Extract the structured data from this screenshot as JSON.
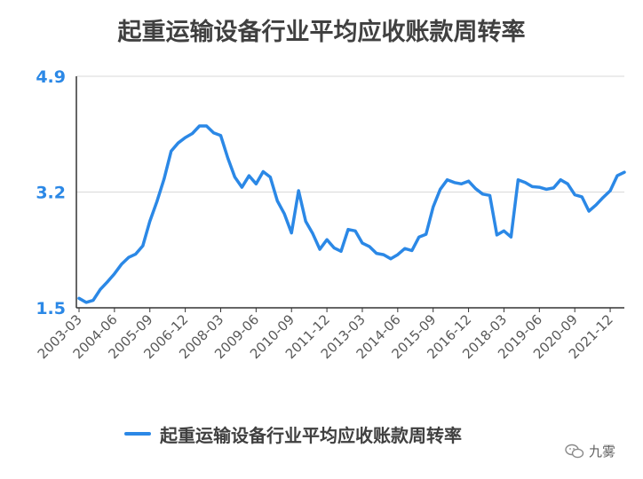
{
  "chart_data": {
    "type": "line",
    "title": "起重运输设备行业平均应收账款周转率",
    "xlabel": "",
    "ylabel": "",
    "ylim": [
      1.5,
      4.9
    ],
    "yticks": [
      1.5,
      3.2,
      4.9
    ],
    "xticks": [
      "2003-03",
      "2004-06",
      "2005-09",
      "2006-12",
      "2008-03",
      "2009-06",
      "2010-09",
      "2011-12",
      "2013-03",
      "2014-06",
      "2015-09",
      "2016-12",
      "2018-03",
      "2019-06",
      "2020-09",
      "2021-12"
    ],
    "grid": "horizontal",
    "legend_position": "bottom",
    "x": [
      "2003-03",
      "2003-06",
      "2003-09",
      "2003-12",
      "2004-03",
      "2004-06",
      "2004-09",
      "2004-12",
      "2005-03",
      "2005-06",
      "2005-09",
      "2005-12",
      "2006-03",
      "2006-06",
      "2006-09",
      "2006-12",
      "2007-03",
      "2007-06",
      "2007-09",
      "2007-12",
      "2008-03",
      "2008-06",
      "2008-09",
      "2008-12",
      "2009-03",
      "2009-06",
      "2009-09",
      "2009-12",
      "2010-03",
      "2010-06",
      "2010-09",
      "2010-12",
      "2011-03",
      "2011-06",
      "2011-09",
      "2011-12",
      "2012-03",
      "2012-06",
      "2012-09",
      "2012-12",
      "2013-03",
      "2013-06",
      "2013-09",
      "2013-12",
      "2014-03",
      "2014-06",
      "2014-09",
      "2014-12",
      "2015-03",
      "2015-06",
      "2015-09",
      "2015-12",
      "2016-03",
      "2016-06",
      "2016-09",
      "2016-12",
      "2017-03",
      "2017-06",
      "2017-09",
      "2017-12",
      "2018-03",
      "2018-06",
      "2018-09",
      "2018-12",
      "2019-03",
      "2019-06",
      "2019-09",
      "2019-12",
      "2020-03",
      "2020-06",
      "2020-09",
      "2020-12",
      "2021-03",
      "2021-06",
      "2021-09",
      "2021-12",
      "2022-03",
      "2022-06"
    ],
    "series": [
      {
        "name": "起重运输设备行业平均应收账款周转率",
        "color": "#2b88e6",
        "values": [
          1.64,
          1.58,
          1.61,
          1.77,
          1.88,
          2.0,
          2.14,
          2.24,
          2.29,
          2.41,
          2.77,
          3.06,
          3.39,
          3.8,
          3.92,
          4.0,
          4.06,
          4.17,
          4.17,
          4.07,
          4.03,
          3.7,
          3.42,
          3.27,
          3.44,
          3.32,
          3.5,
          3.42,
          3.07,
          2.88,
          2.6,
          3.22,
          2.77,
          2.59,
          2.36,
          2.5,
          2.38,
          2.33,
          2.65,
          2.63,
          2.45,
          2.4,
          2.3,
          2.28,
          2.22,
          2.28,
          2.37,
          2.34,
          2.54,
          2.58,
          2.98,
          3.24,
          3.38,
          3.34,
          3.32,
          3.36,
          3.25,
          3.17,
          3.15,
          2.57,
          2.63,
          2.54,
          3.38,
          3.34,
          3.28,
          3.27,
          3.24,
          3.26,
          3.38,
          3.32,
          3.16,
          3.13,
          2.92,
          3.01,
          3.12,
          3.22,
          3.44,
          3.49
        ]
      }
    ]
  },
  "watermark": {
    "text": "九雾",
    "icon": "wechat-icon"
  }
}
